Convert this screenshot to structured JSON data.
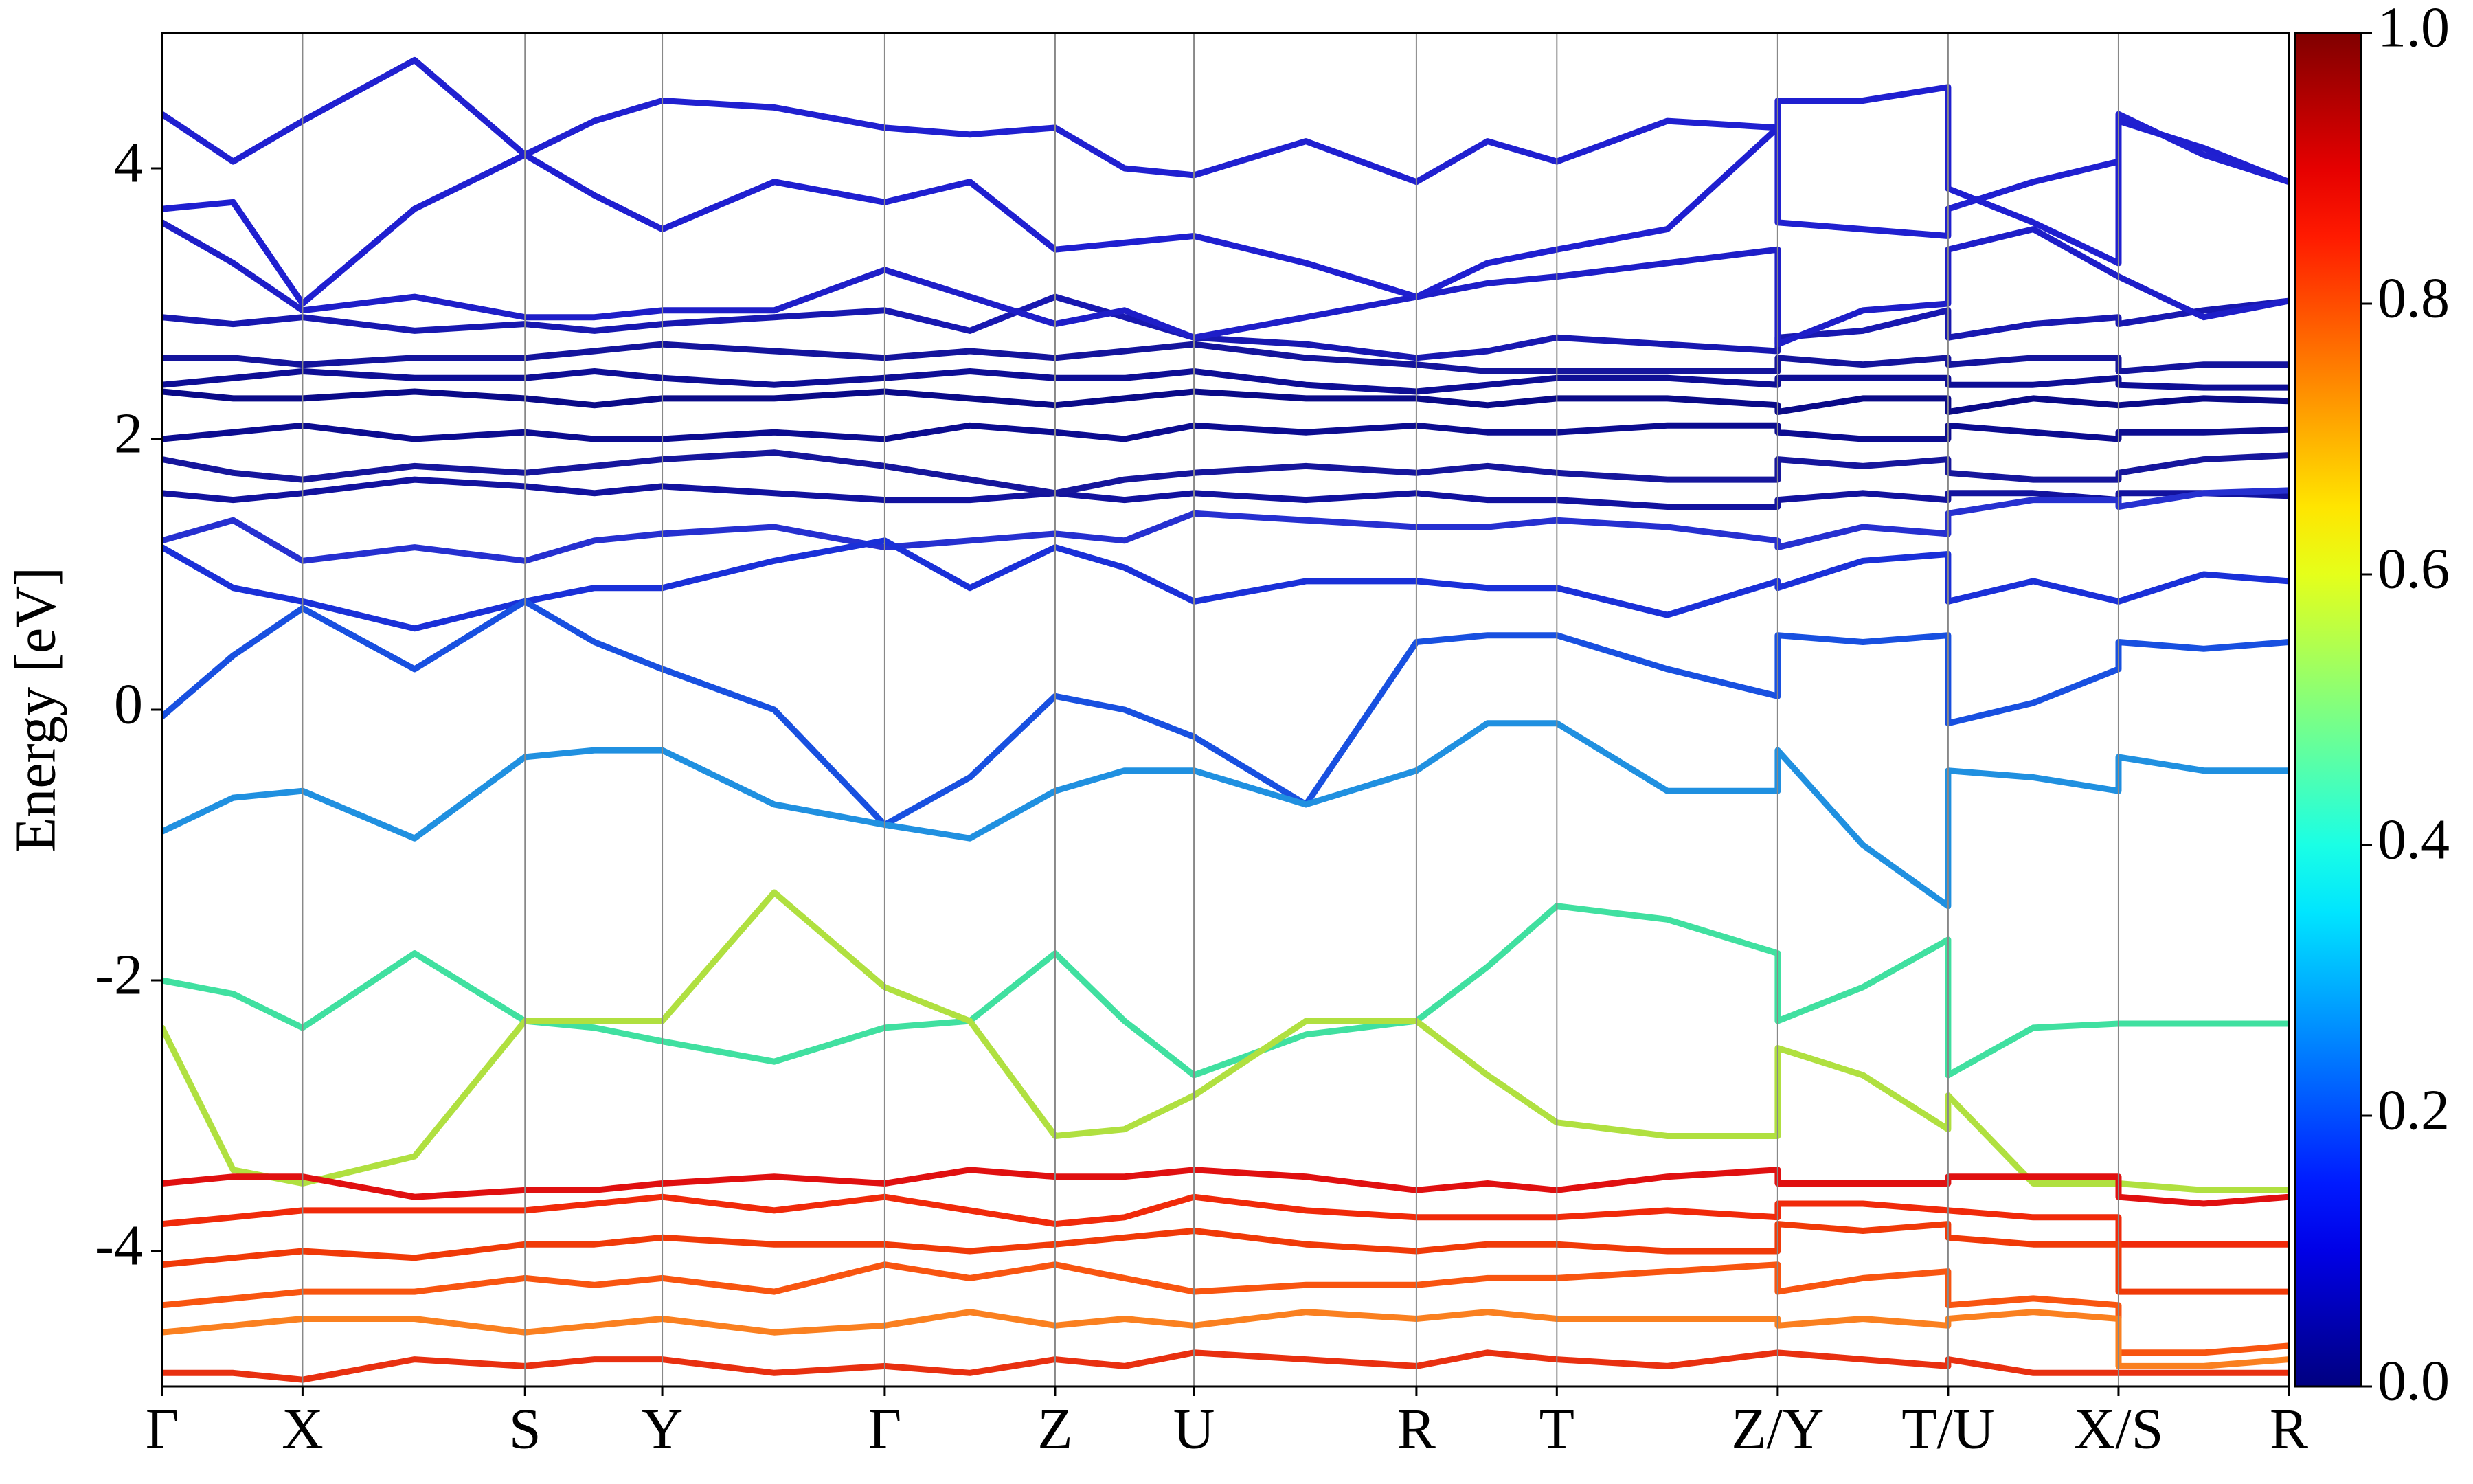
{
  "chart_data": {
    "type": "band-structure",
    "ylabel": "Energy [eV]",
    "xlim": [
      0,
      1348
    ],
    "xticks": [
      {
        "value": 0,
        "label": "Γ"
      },
      {
        "value": 89,
        "label": "X"
      },
      {
        "value": 230,
        "label": "S"
      },
      {
        "value": 317,
        "label": "Y"
      },
      {
        "value": 458,
        "label": "Γ"
      },
      {
        "value": 566,
        "label": "Z"
      },
      {
        "value": 654,
        "label": "U"
      },
      {
        "value": 795,
        "label": "R"
      },
      {
        "value": 884,
        "label": "T"
      },
      {
        "value": 1024,
        "label": "Z/Y"
      },
      {
        "value": 1132,
        "label": "T/U"
      },
      {
        "value": 1240,
        "label": "X/S"
      },
      {
        "value": 1348,
        "label": "R"
      }
    ],
    "ylim": [
      -5,
      5
    ],
    "yticks": [
      -4,
      -2,
      0,
      2,
      4
    ],
    "grid": true,
    "colormap": "jet",
    "colorbar": {
      "lim": [
        0,
        1
      ],
      "ticks": [
        {
          "value": 0,
          "label": "0.0"
        },
        0.2,
        0.4,
        0.6,
        0.8,
        {
          "value": 1,
          "label": "1.0"
        }
      ]
    },
    "x": [
      0,
      45,
      89,
      160,
      230,
      274,
      317,
      388,
      458,
      512,
      566,
      610,
      654,
      725,
      795,
      840,
      884,
      954,
      1024,
      1024,
      1078,
      1132,
      1132,
      1186,
      1240,
      1240,
      1294,
      1348
    ],
    "series": [
      {
        "color": "#12129e",
        "values": [
          1.6,
          1.55,
          1.6,
          1.7,
          1.65,
          1.6,
          1.65,
          1.6,
          1.55,
          1.55,
          1.6,
          1.55,
          1.6,
          1.55,
          1.6,
          1.55,
          1.55,
          1.5,
          1.5,
          1.55,
          1.6,
          1.55,
          1.6,
          1.6,
          1.55,
          1.6,
          1.6,
          1.58
        ]
      },
      {
        "color": "#16169c",
        "values": [
          1.85,
          1.75,
          1.7,
          1.8,
          1.75,
          1.8,
          1.85,
          1.9,
          1.8,
          1.7,
          1.6,
          1.7,
          1.75,
          1.8,
          1.75,
          1.8,
          1.75,
          1.7,
          1.7,
          1.85,
          1.8,
          1.85,
          1.75,
          1.7,
          1.7,
          1.75,
          1.85,
          1.88
        ]
      },
      {
        "color": "#0c0c90",
        "values": [
          2.0,
          2.05,
          2.1,
          2.0,
          2.05,
          2.0,
          2.0,
          2.05,
          2.0,
          2.1,
          2.05,
          2.0,
          2.1,
          2.05,
          2.1,
          2.05,
          2.05,
          2.1,
          2.1,
          2.05,
          2.0,
          2.0,
          2.1,
          2.05,
          2.0,
          2.05,
          2.05,
          2.07
        ]
      },
      {
        "color": "#0a0a88",
        "values": [
          2.35,
          2.3,
          2.3,
          2.35,
          2.3,
          2.25,
          2.3,
          2.3,
          2.35,
          2.3,
          2.25,
          2.3,
          2.35,
          2.3,
          2.3,
          2.25,
          2.3,
          2.3,
          2.25,
          2.2,
          2.3,
          2.3,
          2.2,
          2.3,
          2.25,
          2.25,
          2.3,
          2.28
        ]
      },
      {
        "color": "#0e0e95",
        "values": [
          2.4,
          2.45,
          2.5,
          2.45,
          2.45,
          2.5,
          2.45,
          2.4,
          2.45,
          2.5,
          2.45,
          2.45,
          2.5,
          2.4,
          2.35,
          2.4,
          2.45,
          2.45,
          2.4,
          2.45,
          2.45,
          2.45,
          2.4,
          2.4,
          2.45,
          2.4,
          2.38,
          2.38
        ]
      },
      {
        "color": "#14149c",
        "values": [
          2.6,
          2.6,
          2.55,
          2.6,
          2.6,
          2.65,
          2.7,
          2.65,
          2.6,
          2.65,
          2.6,
          2.65,
          2.7,
          2.6,
          2.55,
          2.5,
          2.5,
          2.5,
          2.5,
          2.6,
          2.55,
          2.6,
          2.55,
          2.6,
          2.6,
          2.5,
          2.55,
          2.55
        ]
      },
      {
        "color": "#1818b0",
        "values": [
          2.9,
          2.85,
          2.9,
          2.8,
          2.85,
          2.8,
          2.85,
          2.9,
          2.95,
          2.8,
          3.05,
          2.9,
          2.75,
          2.7,
          2.6,
          2.65,
          2.75,
          2.7,
          2.65,
          2.75,
          2.8,
          2.95,
          2.75,
          2.85,
          2.9,
          2.85,
          2.95,
          3.02
        ]
      },
      {
        "color": "#1e1ec8",
        "values": [
          3.6,
          3.3,
          2.95,
          3.05,
          2.9,
          2.9,
          2.95,
          2.95,
          3.25,
          3.05,
          2.85,
          2.95,
          2.75,
          2.9,
          3.05,
          3.15,
          3.2,
          3.3,
          3.4,
          2.7,
          2.95,
          3.0,
          3.4,
          3.55,
          3.2,
          3.2,
          2.9,
          3.02
        ]
      },
      {
        "color": "#1f1fd0",
        "values": [
          3.7,
          3.75,
          3.0,
          3.7,
          4.1,
          3.8,
          3.55,
          3.9,
          3.75,
          3.9,
          3.4,
          3.45,
          3.5,
          3.3,
          3.05,
          3.3,
          3.4,
          3.55,
          4.3,
          4.5,
          4.5,
          4.6,
          3.85,
          3.6,
          3.3,
          4.35,
          4.15,
          3.9
        ]
      },
      {
        "color": "#2020d0",
        "values": [
          4.4,
          4.05,
          4.35,
          4.8,
          4.1,
          4.35,
          4.5,
          4.45,
          4.3,
          4.25,
          4.3,
          4.0,
          3.95,
          4.2,
          3.9,
          4.2,
          4.05,
          4.35,
          4.3,
          3.6,
          3.55,
          3.5,
          3.7,
          3.9,
          4.05,
          4.4,
          4.1,
          3.9
        ]
      },
      {
        "color": "#2630d0",
        "values": [
          1.25,
          1.4,
          1.1,
          1.2,
          1.1,
          1.25,
          1.3,
          1.35,
          1.2,
          1.25,
          1.3,
          1.25,
          1.45,
          1.4,
          1.35,
          1.35,
          1.4,
          1.35,
          1.25,
          1.2,
          1.35,
          1.3,
          1.45,
          1.55,
          1.55,
          1.5,
          1.6,
          1.62
        ]
      },
      {
        "color": "#1a30d8",
        "values": [
          1.2,
          0.9,
          0.8,
          0.6,
          0.8,
          0.9,
          0.9,
          1.1,
          1.25,
          0.9,
          1.2,
          1.05,
          0.8,
          0.95,
          0.95,
          0.9,
          0.9,
          0.7,
          0.95,
          0.9,
          1.1,
          1.15,
          0.8,
          0.95,
          0.8,
          0.8,
          1.0,
          0.95
        ]
      },
      {
        "color": "#1850e0",
        "values": [
          -0.05,
          0.4,
          0.75,
          0.3,
          0.8,
          0.5,
          0.3,
          0.0,
          -0.85,
          -0.5,
          0.1,
          0.0,
          -0.2,
          -0.7,
          0.5,
          0.55,
          0.55,
          0.3,
          0.1,
          0.55,
          0.5,
          0.55,
          -0.1,
          0.05,
          0.3,
          0.5,
          0.45,
          0.5
        ]
      },
      {
        "color": "#2090e0",
        "values": [
          -0.9,
          -0.65,
          -0.6,
          -0.95,
          -0.35,
          -0.3,
          -0.3,
          -0.7,
          -0.85,
          -0.95,
          -0.6,
          -0.45,
          -0.45,
          -0.7,
          -0.45,
          -0.1,
          -0.1,
          -0.6,
          -0.6,
          -0.3,
          -1.0,
          -1.45,
          -0.45,
          -0.5,
          -0.6,
          -0.35,
          -0.45,
          -0.45
        ]
      },
      {
        "color": "#40e0a0",
        "values": [
          -2.0,
          -2.1,
          -2.35,
          -1.8,
          -2.3,
          -2.35,
          -2.45,
          -2.6,
          -2.35,
          -2.3,
          -1.8,
          -2.3,
          -2.7,
          -2.4,
          -2.3,
          -1.9,
          -1.45,
          -1.55,
          -1.8,
          -2.3,
          -2.05,
          -1.7,
          -2.7,
          -2.35,
          -2.32,
          -2.32,
          -2.32,
          -2.32
        ]
      },
      {
        "color": "#b0e040",
        "values": [
          -2.35,
          -3.4,
          -3.5,
          -3.3,
          -2.3,
          -2.3,
          -2.3,
          -1.35,
          -2.05,
          -2.3,
          -3.15,
          -3.1,
          -2.85,
          -2.3,
          -2.3,
          -2.7,
          -3.05,
          -3.15,
          -3.15,
          -2.5,
          -2.7,
          -3.1,
          -2.85,
          -3.5,
          -3.5,
          -3.5,
          -3.55,
          -3.55
        ]
      },
      {
        "color": "#e01010",
        "values": [
          -3.5,
          -3.45,
          -3.45,
          -3.6,
          -3.55,
          -3.55,
          -3.5,
          -3.45,
          -3.5,
          -3.4,
          -3.45,
          -3.45,
          -3.4,
          -3.45,
          -3.55,
          -3.5,
          -3.55,
          -3.45,
          -3.4,
          -3.5,
          -3.5,
          -3.5,
          -3.45,
          -3.45,
          -3.45,
          -3.6,
          -3.65,
          -3.6
        ]
      },
      {
        "color": "#f02a0a",
        "values": [
          -3.8,
          -3.75,
          -3.7,
          -3.7,
          -3.7,
          -3.65,
          -3.6,
          -3.7,
          -3.6,
          -3.7,
          -3.8,
          -3.75,
          -3.6,
          -3.7,
          -3.75,
          -3.75,
          -3.75,
          -3.7,
          -3.75,
          -3.65,
          -3.65,
          -3.7,
          -3.7,
          -3.75,
          -3.75,
          -3.95,
          -3.95,
          -3.95
        ]
      },
      {
        "color": "#f03a08",
        "values": [
          -4.1,
          -4.05,
          -4.0,
          -4.05,
          -3.95,
          -3.95,
          -3.9,
          -3.95,
          -3.95,
          -4.0,
          -3.95,
          -3.9,
          -3.85,
          -3.95,
          -4.0,
          -3.95,
          -3.95,
          -4.0,
          -4.0,
          -3.8,
          -3.85,
          -3.8,
          -3.9,
          -3.95,
          -3.95,
          -4.3,
          -4.3,
          -4.3
        ]
      },
      {
        "color": "#f85510",
        "values": [
          -4.4,
          -4.35,
          -4.3,
          -4.3,
          -4.2,
          -4.25,
          -4.2,
          -4.3,
          -4.1,
          -4.2,
          -4.1,
          -4.2,
          -4.3,
          -4.25,
          -4.25,
          -4.2,
          -4.2,
          -4.15,
          -4.1,
          -4.3,
          -4.2,
          -4.15,
          -4.4,
          -4.35,
          -4.4,
          -4.75,
          -4.75,
          -4.7
        ]
      },
      {
        "color": "#fa8020",
        "values": [
          -4.6,
          -4.55,
          -4.5,
          -4.5,
          -4.6,
          -4.55,
          -4.5,
          -4.6,
          -4.55,
          -4.45,
          -4.55,
          -4.5,
          -4.55,
          -4.45,
          -4.5,
          -4.45,
          -4.5,
          -4.5,
          -4.5,
          -4.55,
          -4.5,
          -4.55,
          -4.5,
          -4.45,
          -4.5,
          -4.85,
          -4.85,
          -4.8
        ]
      },
      {
        "color": "#e83010",
        "values": [
          -4.9,
          -4.9,
          -4.95,
          -4.8,
          -4.85,
          -4.8,
          -4.8,
          -4.9,
          -4.85,
          -4.9,
          -4.8,
          -4.85,
          -4.75,
          -4.8,
          -4.85,
          -4.75,
          -4.8,
          -4.85,
          -4.75,
          -4.75,
          -4.8,
          -4.85,
          -4.8,
          -4.9,
          -4.9,
          -4.9,
          -4.9,
          -4.9
        ]
      }
    ]
  }
}
